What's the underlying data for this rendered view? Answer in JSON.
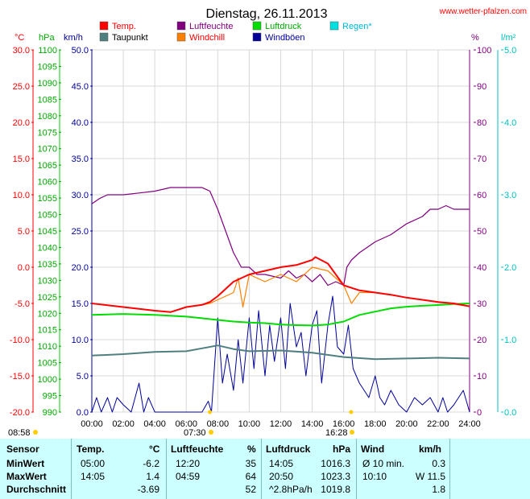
{
  "header": {
    "title": "Dienstag, 26.11.2013",
    "site": "www.wetter-pfalzen.com"
  },
  "units": {
    "temp": "°C",
    "pressure": "hPa",
    "wind": "km/h",
    "humidity": "%",
    "rain": "l/m²"
  },
  "colors": {
    "temp": "#ff0000",
    "dew": "#4f7f7f",
    "humidity": "#800080",
    "windchill": "#ff8000",
    "pressure": "#00dd00",
    "gust": "#000099",
    "rain": "#00e0e0",
    "wind": "#000099"
  },
  "chart_data": {
    "type": "line",
    "title": "Dienstag, 26.11.2013",
    "x_ticks": [
      "00:00",
      "02:00",
      "04:00",
      "06:00",
      "08:00",
      "10:00",
      "12:00",
      "14:00",
      "16:00",
      "18:00",
      "20:00",
      "22:00",
      "24:00"
    ],
    "axes": {
      "temp": {
        "min": -20,
        "max": 30,
        "ticks": [
          "30.0",
          "25.0",
          "20.0",
          "15.0",
          "10.0",
          "5.0",
          "0.0",
          "-5.0",
          "-10.0",
          "-15.0",
          "-20.0"
        ]
      },
      "pressure": {
        "min": 990,
        "max": 1100,
        "ticks": [
          "1100",
          "1095",
          "1090",
          "1085",
          "1080",
          "1075",
          "1070",
          "1065",
          "1060",
          "1055",
          "1050",
          "1045",
          "1040",
          "1035",
          "1030",
          "1025",
          "1020",
          "1015",
          "1010",
          "1005",
          "1000",
          "995",
          "990"
        ]
      },
      "wind": {
        "min": 0,
        "max": 50,
        "ticks": [
          "50.0",
          "45.0",
          "40.0",
          "35.0",
          "30.0",
          "25.0",
          "20.0",
          "15.0",
          "10.0",
          "5.0",
          "0.0"
        ]
      },
      "humidity": {
        "min": 0,
        "max": 100,
        "ticks": [
          "100",
          "90",
          "80",
          "70",
          "60",
          "50",
          "40",
          "30",
          "20",
          "10",
          "0"
        ]
      },
      "rain": {
        "min": 0,
        "max": 5,
        "ticks": [
          "5.0",
          "4.0",
          "3.0",
          "2.0",
          "1.0",
          "0.0"
        ]
      }
    },
    "legend": [
      {
        "name": "Temp.",
        "key": "temp"
      },
      {
        "name": "Luftfeuchte",
        "key": "humidity"
      },
      {
        "name": "Luftdruck",
        "key": "pressure"
      },
      {
        "name": "Regen*",
        "key": "rain"
      },
      {
        "name": "Taupunkt",
        "key": "dew"
      },
      {
        "name": "Windchill",
        "key": "windchill"
      },
      {
        "name": "Windböen",
        "key": "gust"
      }
    ],
    "series": [
      {
        "name": "Temp.",
        "axis": "temp",
        "x": [
          0,
          2,
          4,
          5,
          6,
          7,
          7.5,
          8,
          9,
          10,
          11,
          12,
          13,
          14,
          14.2,
          15,
          16,
          17,
          18,
          19,
          20,
          21,
          22,
          23,
          24
        ],
        "y": [
          -5.0,
          -5.5,
          -6.0,
          -6.2,
          -5.5,
          -5.2,
          -4.8,
          -4,
          -2,
          -1,
          -0.5,
          0,
          0.3,
          1.0,
          1.4,
          0.5,
          -2.5,
          -3.2,
          -3.5,
          -3.8,
          -4.2,
          -4.5,
          -4.8,
          -5.0,
          -5.4
        ]
      },
      {
        "name": "Taupunkt",
        "axis": "temp",
        "x": [
          0,
          2,
          4,
          6,
          7,
          8,
          9,
          10,
          12,
          14,
          16,
          18,
          20,
          22,
          24
        ],
        "y": [
          -12.2,
          -12.0,
          -11.7,
          -11.6,
          -11.2,
          -10.8,
          -11.3,
          -11.6,
          -11.5,
          -11.8,
          -12.4,
          -12.7,
          -12.6,
          -12.5,
          -12.6
        ]
      },
      {
        "name": "Windchill",
        "axis": "temp",
        "x": [
          0,
          2,
          4,
          5,
          6,
          7,
          7.5,
          8,
          9,
          9.3,
          9.6,
          10,
          11,
          12,
          13,
          14,
          15,
          16,
          16.5,
          17,
          18,
          20,
          22,
          24
        ],
        "y": [
          -5.0,
          -5.5,
          -6.0,
          -6.2,
          -5.5,
          -5.2,
          -5.0,
          -4.5,
          -3.5,
          -1.5,
          -5.5,
          -1,
          -2,
          -1,
          -2,
          0,
          -0.5,
          -2.5,
          -5,
          -3.5,
          -3.5,
          -4.2,
          -4.8,
          -5.4
        ]
      },
      {
        "name": "Luftfeuchte",
        "axis": "humidity",
        "x": [
          0,
          0.5,
          1,
          2,
          3,
          4,
          5,
          6,
          7,
          7.5,
          8,
          8.5,
          9,
          9.5,
          10,
          10.5,
          11,
          12,
          12.5,
          13,
          13.5,
          14,
          14.5,
          15,
          15.5,
          16,
          16.2,
          16.5,
          17,
          18,
          19,
          20,
          21,
          21.5,
          22,
          22.5,
          23,
          23.5,
          24
        ],
        "y": [
          57.5,
          59,
          60,
          60,
          60.5,
          61,
          62,
          62,
          62,
          61,
          56,
          50,
          44,
          40,
          40,
          38,
          38,
          37,
          39,
          37,
          38,
          36,
          38,
          35,
          36,
          35,
          40,
          42,
          44,
          47,
          49,
          52,
          54,
          56,
          56,
          57,
          56,
          56,
          56
        ]
      },
      {
        "name": "Luftdruck",
        "axis": "pressure",
        "x": [
          0,
          2,
          4,
          6,
          7,
          8,
          9,
          10,
          11,
          12,
          13,
          14,
          14.1,
          15,
          16,
          17,
          18,
          19,
          20,
          21,
          22,
          23,
          24
        ],
        "y": [
          1019.5,
          1019.8,
          1019.5,
          1019,
          1018.5,
          1018,
          1017.5,
          1017.2,
          1017,
          1016.6,
          1016.4,
          1016.3,
          1016.3,
          1016.6,
          1017.5,
          1019.5,
          1020.5,
          1021.5,
          1022,
          1022.3,
          1022.5,
          1022.8,
          1023
        ]
      },
      {
        "name": "Windböen",
        "axis": "wind",
        "x": [
          0,
          0.3,
          0.6,
          1,
          1.3,
          1.6,
          2,
          2.5,
          3,
          3.3,
          3.6,
          4,
          4.5,
          5,
          5.5,
          6,
          6.5,
          7,
          7.4,
          7.6,
          8,
          8.3,
          8.6,
          9,
          9.3,
          9.6,
          10,
          10.3,
          10.6,
          11,
          11.3,
          11.6,
          12,
          12.3,
          12.6,
          13,
          13.3,
          13.6,
          14,
          14.3,
          14.6,
          15,
          15.3,
          15.6,
          16,
          16.3,
          16.6,
          17,
          17.3,
          17.6,
          18,
          18.3,
          18.6,
          19,
          19.5,
          20,
          20.5,
          21,
          21.5,
          22,
          22.3,
          22.6,
          23,
          23.3,
          23.6,
          24
        ],
        "y": [
          0,
          2,
          0,
          2,
          0,
          2,
          1,
          0,
          4,
          0,
          2,
          0,
          0,
          0,
          0,
          0,
          0,
          0,
          1.5,
          0,
          13,
          4,
          8,
          3,
          10,
          4,
          13,
          6,
          14,
          5,
          12,
          7,
          13,
          6,
          15,
          9,
          11,
          5,
          12,
          14,
          4,
          12,
          16,
          9,
          8,
          12,
          6,
          4,
          3,
          2,
          5,
          2,
          1,
          3,
          1,
          0,
          2,
          1,
          2,
          0,
          2,
          0,
          1,
          2,
          3,
          0
        ]
      }
    ]
  },
  "markers": {
    "left": "08:58",
    "sunrise": "07:30",
    "sunset": "16:28"
  },
  "stats": {
    "headers": {
      "sensor": "Sensor",
      "temp": "Temp.",
      "temp_unit": "°C",
      "hum": "Luftfeuchte",
      "hum_unit": "%",
      "press": "Luftdruck",
      "press_unit": "hPa",
      "wind": "Wind",
      "wind_unit": "km/h"
    },
    "rows": [
      {
        "label": "MinWert",
        "temp_time": "05:00",
        "temp": "-6.2",
        "hum_time": "12:20",
        "hum": "35",
        "press_time": "14:05",
        "press": "1016.3",
        "wind_time": "Ø 10 min.",
        "wind": "0.3"
      },
      {
        "label": "MaxWert",
        "temp_time": "14:05",
        "temp": "1.4",
        "hum_time": "04:59",
        "hum": "64",
        "press_time": "20:50",
        "press": "1023.3",
        "wind_time": "10:10",
        "wind": "W 11.5"
      },
      {
        "label": "Durchschnitt",
        "temp_time": "",
        "temp": "-3.69",
        "hum_time": "",
        "hum": "52",
        "press_time": "^2.8hPa/h",
        "press": "1019.8",
        "wind_time": "",
        "wind": "1.8"
      }
    ]
  }
}
